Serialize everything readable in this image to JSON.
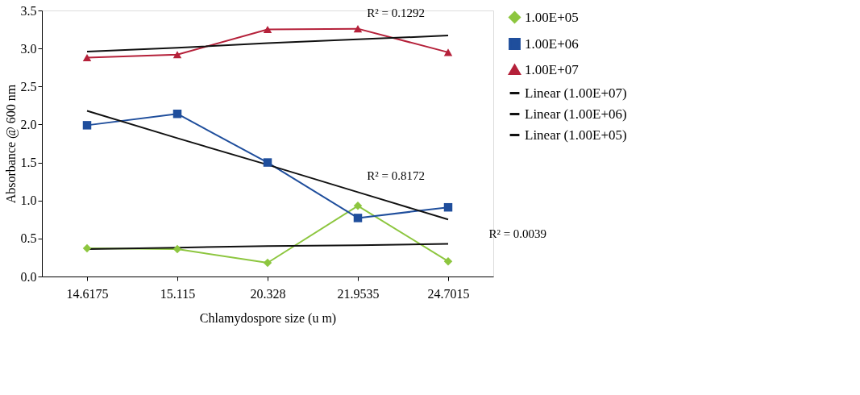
{
  "chart_data": {
    "type": "line",
    "xlabel": "Chlamydospore size (u m)",
    "ylabel": "Absorbance @ 600 nm",
    "categories": [
      "14.6175",
      "15.115",
      "20.328",
      "21.9535",
      "24.7015"
    ],
    "series": [
      {
        "name": "1.00E+05",
        "color": "#8dc63f",
        "marker": "diamond",
        "values": [
          0.37,
          0.36,
          0.18,
          0.93,
          0.2
        ]
      },
      {
        "name": "1.00E+06",
        "color": "#1f4e9c",
        "marker": "square",
        "values": [
          1.99,
          2.14,
          1.5,
          0.77,
          0.91
        ]
      },
      {
        "name": "1.00E+07",
        "color": "#b5213a",
        "marker": "triangle",
        "values": [
          2.88,
          2.92,
          3.25,
          3.26,
          2.95
        ]
      },
      {
        "name": "Linear (1.00E+07)",
        "color": "#111111",
        "marker": "none",
        "values": [
          2.96,
          3.01,
          3.07,
          3.12,
          3.17
        ]
      },
      {
        "name": "Linear (1.00E+06)",
        "color": "#111111",
        "marker": "none",
        "values": [
          2.18,
          1.82,
          1.47,
          1.11,
          0.75
        ]
      },
      {
        "name": "Linear (1.00E+05)",
        "color": "#111111",
        "marker": "none",
        "values": [
          0.36,
          0.38,
          0.4,
          0.41,
          0.43
        ]
      }
    ],
    "ylim": [
      0,
      3.5
    ],
    "yticks": [
      {
        "value": 0,
        "label": "0.0"
      },
      {
        "value": 0.5,
        "label": "0.5"
      },
      {
        "value": 1,
        "label": "1.0"
      },
      {
        "value": 1.5,
        "label": "1.5"
      },
      {
        "value": 2,
        "label": "2.0"
      },
      {
        "value": 2.5,
        "label": "2.5"
      },
      {
        "value": 3,
        "label": "3.0"
      },
      {
        "value": 3.5,
        "label": "3.5"
      }
    ],
    "annotations": [
      "R² = 0.1292",
      "R² = 0.8172",
      "R² = 0.0039"
    ],
    "legend": "right",
    "grid": false,
    "line_style": "solid"
  }
}
